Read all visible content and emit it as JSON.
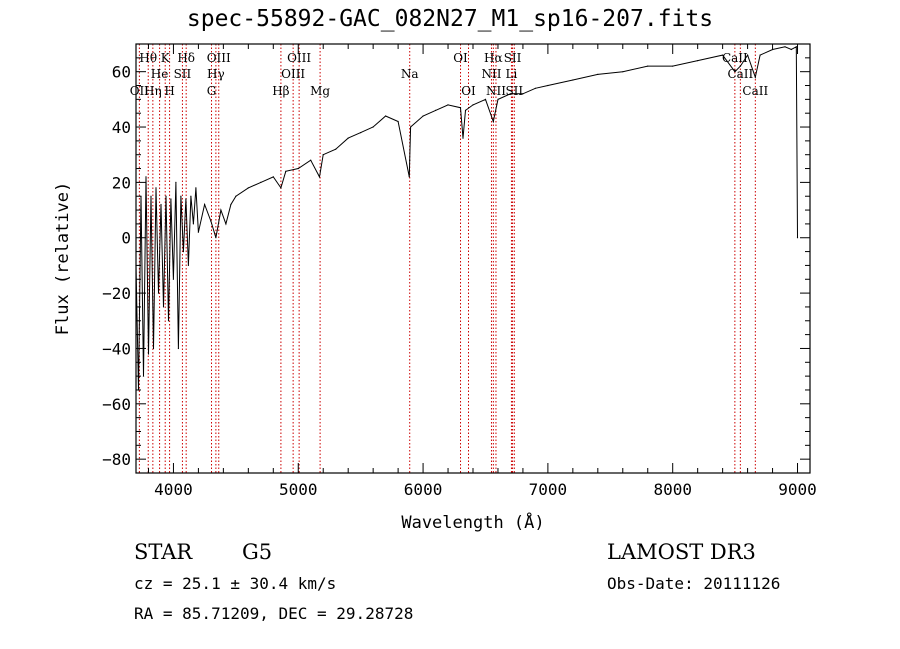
{
  "chart_data": {
    "type": "line",
    "title": "spec-55892-GAC_082N27_M1_sp16-207.fits",
    "xlabel": "Wavelength (Å)",
    "ylabel": "Flux (relative)",
    "xlim": [
      3700,
      9100
    ],
    "ylim": [
      -85,
      70
    ],
    "xticks": [
      4000,
      5000,
      6000,
      7000,
      8000,
      9000
    ],
    "yticks": [
      -80,
      -60,
      -40,
      -20,
      0,
      20,
      40,
      60
    ],
    "series": [
      {
        "name": "flux",
        "x": [
          3700,
          3720,
          3740,
          3760,
          3780,
          3800,
          3820,
          3840,
          3860,
          3880,
          3900,
          3920,
          3940,
          3960,
          3980,
          4000,
          4020,
          4040,
          4060,
          4080,
          4100,
          4120,
          4140,
          4160,
          4180,
          4200,
          4250,
          4300,
          4340,
          4380,
          4420,
          4460,
          4500,
          4600,
          4700,
          4800,
          4861,
          4900,
          5000,
          5100,
          5170,
          5200,
          5300,
          5400,
          5500,
          5600,
          5700,
          5800,
          5890,
          5893,
          5900,
          6000,
          6100,
          6200,
          6300,
          6320,
          6340,
          6400,
          6500,
          6563,
          6600,
          6700,
          6800,
          6900,
          7000,
          7200,
          7400,
          7600,
          7800,
          8000,
          8200,
          8400,
          8498,
          8542,
          8600,
          8662,
          8700,
          8800,
          8900,
          8950,
          8990,
          9000
        ],
        "y": [
          -10,
          -55,
          15,
          -50,
          22,
          -42,
          15,
          -40,
          18,
          -20,
          12,
          -25,
          15,
          -30,
          14,
          -15,
          20,
          -40,
          15,
          -5,
          14,
          -10,
          15,
          5,
          18,
          2,
          12,
          6,
          0,
          10,
          5,
          12,
          15,
          18,
          20,
          22,
          18,
          24,
          25,
          28,
          22,
          30,
          32,
          36,
          38,
          40,
          44,
          42,
          22,
          28,
          40,
          44,
          46,
          48,
          47,
          36,
          46,
          48,
          50,
          42,
          50,
          52,
          52,
          54,
          55,
          57,
          59,
          60,
          62,
          62,
          64,
          66,
          60,
          62,
          66,
          58,
          66,
          68,
          69,
          68,
          69,
          0
        ]
      }
    ],
    "lines": [
      {
        "name": "Hθ",
        "wl": 3798,
        "row": 1
      },
      {
        "name": "OII",
        "wl": 3727,
        "row": 3
      },
      {
        "name": "Hη",
        "wl": 3835,
        "row": 3
      },
      {
        "name": "He",
        "wl": 3889,
        "row": 2
      },
      {
        "name": "K",
        "wl": 3934,
        "row": 1
      },
      {
        "name": "H",
        "wl": 3969,
        "row": 3
      },
      {
        "name": "Hδ",
        "wl": 4102,
        "row": 1
      },
      {
        "name": "SII",
        "wl": 4072,
        "row": 2
      },
      {
        "name": "OIII",
        "wl": 4363,
        "row": 1
      },
      {
        "name": "Hγ",
        "wl": 4340,
        "row": 2
      },
      {
        "name": "G",
        "wl": 4305,
        "row": 3
      },
      {
        "name": "Hβ",
        "wl": 4861,
        "row": 3
      },
      {
        "name": "OIII",
        "wl": 4959,
        "row": 2
      },
      {
        "name": "OIII",
        "wl": 5007,
        "row": 1
      },
      {
        "name": "Mg",
        "wl": 5175,
        "row": 3
      },
      {
        "name": "Na",
        "wl": 5893,
        "row": 2
      },
      {
        "name": "OI",
        "wl": 6300,
        "row": 1
      },
      {
        "name": "OI",
        "wl": 6364,
        "row": 3
      },
      {
        "name": "Hα",
        "wl": 6563,
        "row": 1
      },
      {
        "name": "NII",
        "wl": 6548,
        "row": 2
      },
      {
        "name": "NII",
        "wl": 6584,
        "row": 3
      },
      {
        "name": "SII",
        "wl": 6717,
        "row": 1
      },
      {
        "name": "Li",
        "wl": 6708,
        "row": 2
      },
      {
        "name": "SII",
        "wl": 6731,
        "row": 3
      },
      {
        "name": "CaII",
        "wl": 8498,
        "row": 1
      },
      {
        "name": "CaII",
        "wl": 8542,
        "row": 2
      },
      {
        "name": "CaII",
        "wl": 8662,
        "row": 3
      }
    ],
    "line_color": "#cc0000"
  },
  "info": {
    "class": "STAR",
    "subclass": "G5",
    "survey": "LAMOST DR3",
    "cz": "cz = 25.1 ± 30.4 km/s",
    "obs_date": "Obs-Date: 20111126",
    "coords": "RA =  85.71209, DEC =  29.28728"
  }
}
